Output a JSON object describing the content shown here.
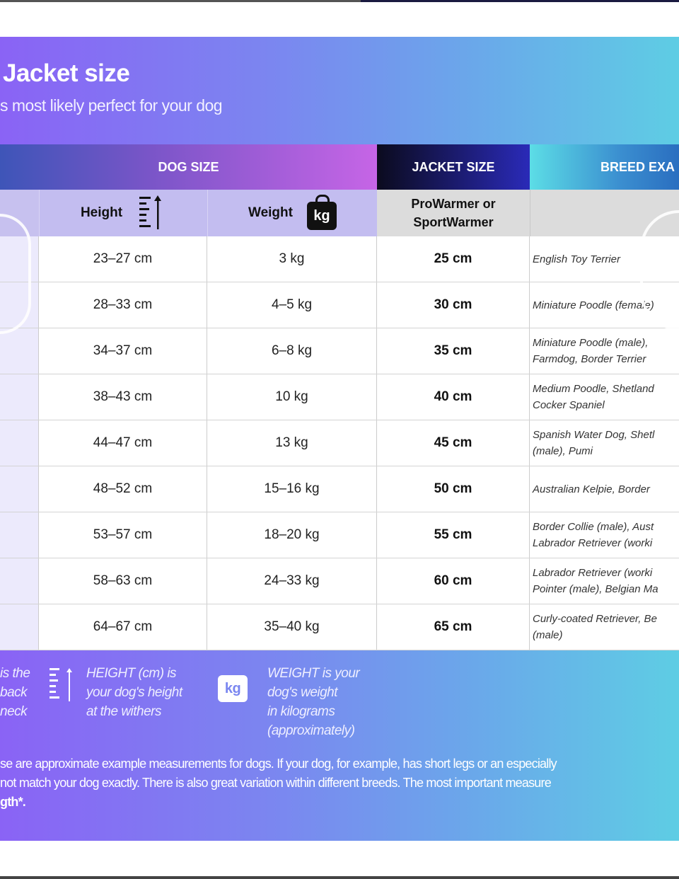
{
  "title": "Jacket size",
  "subtitle": "s most likely perfect for your dog",
  "headers": {
    "dog_size": "DOG SIZE",
    "jacket_size": "JACKET SIZE",
    "breed": "BREED EXA"
  },
  "subheaders": {
    "height": "Height",
    "weight": "Weight",
    "weight_icon_text": "kg",
    "jacket_line1": "ProWarmer or",
    "jacket_line2": "SportWarmer"
  },
  "rows": [
    {
      "height": "23–27 cm",
      "weight": "3 kg",
      "jacket": "25 cm",
      "breeds": "English Toy Terrier"
    },
    {
      "height": "28–33 cm",
      "weight": "4–5 kg",
      "jacket": "30 cm",
      "breeds": "Miniature Poodle (female)"
    },
    {
      "height": "34–37 cm",
      "weight": "6–8 kg",
      "jacket": "35 cm",
      "breeds": "Miniature Poodle (male), \nFarmdog, Border Terrier"
    },
    {
      "height": "38–43 cm",
      "weight": "10 kg",
      "jacket": "40 cm",
      "breeds": "Medium Poodle, Shetland\nCocker Spaniel"
    },
    {
      "height": "44–47 cm",
      "weight": "13 kg",
      "jacket": "45 cm",
      "breeds": "Spanish Water Dog, Shetl\n(male), Pumi"
    },
    {
      "height": "48–52 cm",
      "weight": "15–16 kg",
      "jacket": "50 cm",
      "breeds": "Australian Kelpie, Border"
    },
    {
      "height": "53–57 cm",
      "weight": "18–20 kg",
      "jacket": "55 cm",
      "breeds": "Border Collie (male), Aust\nLabrador Retriever (worki"
    },
    {
      "height": "58–63 cm",
      "weight": "24–33 kg",
      "jacket": "60 cm",
      "breeds": "Labrador Retriever (worki\nPointer (male), Belgian Ma"
    },
    {
      "height": "64–67 cm",
      "weight": "35–40 kg",
      "jacket": "65 cm",
      "breeds": "Curly-coated Retriever, Be\n(male)"
    }
  ],
  "legend": {
    "length": [
      "is the",
      "back",
      "neck"
    ],
    "height": [
      "HEIGHT (cm) is",
      "your dog's height",
      "at the withers"
    ],
    "weight_icon_text": "kg",
    "weight": [
      "WEIGHT is your",
      "dog's weight",
      "in kilograms",
      "(approximately)"
    ]
  },
  "note": {
    "line1": "se are approximate example measurements for dogs. If your dog, for example, has short legs or an especially",
    "line2": "not match your dog exactly. There is also great variation within different breeds. The most important measure",
    "line3": "gth*."
  }
}
